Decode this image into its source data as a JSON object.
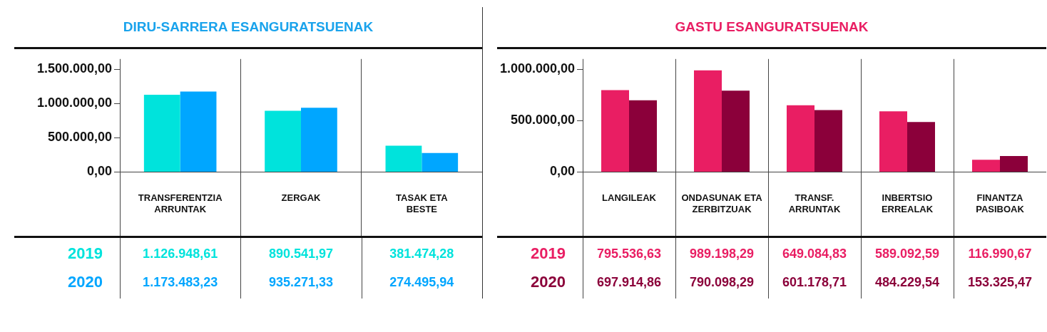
{
  "chart_data": [
    {
      "type": "bar",
      "title": "DIRU-SARRERA ESANGURATSUENAK",
      "categories": [
        "TRANSFERENTZIA ARRUNTAK",
        "ZERGAK",
        "TASAK ETA BESTE"
      ],
      "series": [
        {
          "name": "2019",
          "color": "#00e3dc",
          "values": [
            1126948.61,
            890541.97,
            381474.28
          ],
          "value_labels": [
            "1.126.948,61",
            "890.541,97",
            "381.474,28"
          ]
        },
        {
          "name": "2020",
          "color": "#00a6ff",
          "values": [
            1173483.23,
            935271.33,
            274495.94
          ],
          "value_labels": [
            "1.173.483,23",
            "935.271,33",
            "274.495,94"
          ]
        }
      ],
      "ylim": [
        0,
        1650000
      ],
      "yticks": [
        {
          "value": 0,
          "label": "0,00"
        },
        {
          "value": 500000,
          "label": "500.000,00"
        },
        {
          "value": 1000000,
          "label": "1.000.000,00"
        },
        {
          "value": 1500000,
          "label": "1.500.000,00"
        }
      ],
      "grid": "x",
      "legend": false
    },
    {
      "type": "bar",
      "title": "GASTU ESANGURATSUENAK",
      "categories": [
        "LANGILEAK",
        "ONDASUNAK ETA ZERBITZUAK",
        "TRANSF. ARRUNTAK",
        "INBERTSIO ERREALAK",
        "FINANTZA PASIBOAK"
      ],
      "series": [
        {
          "name": "2019",
          "color": "#e91e63",
          "values": [
            795536.63,
            989198.29,
            649084.83,
            589092.59,
            116990.67
          ],
          "value_labels": [
            "795.536,63",
            "989.198,29",
            "649.084,83",
            "589.092,59",
            "116.990,67"
          ]
        },
        {
          "name": "2020",
          "color": "#8b003a",
          "values": [
            697914.86,
            790098.29,
            601178.71,
            484229.54,
            153325.47
          ],
          "value_labels": [
            "697.914,86",
            "790.098,29",
            "601.178,71",
            "484.229,54",
            "153.325,47"
          ]
        }
      ],
      "ylim": [
        0,
        1100000
      ],
      "yticks": [
        {
          "value": 0,
          "label": "0,00"
        },
        {
          "value": 500000,
          "label": "500.000,00"
        },
        {
          "value": 1000000,
          "label": "1.000.000,00"
        }
      ],
      "grid": "x",
      "legend": false
    }
  ]
}
